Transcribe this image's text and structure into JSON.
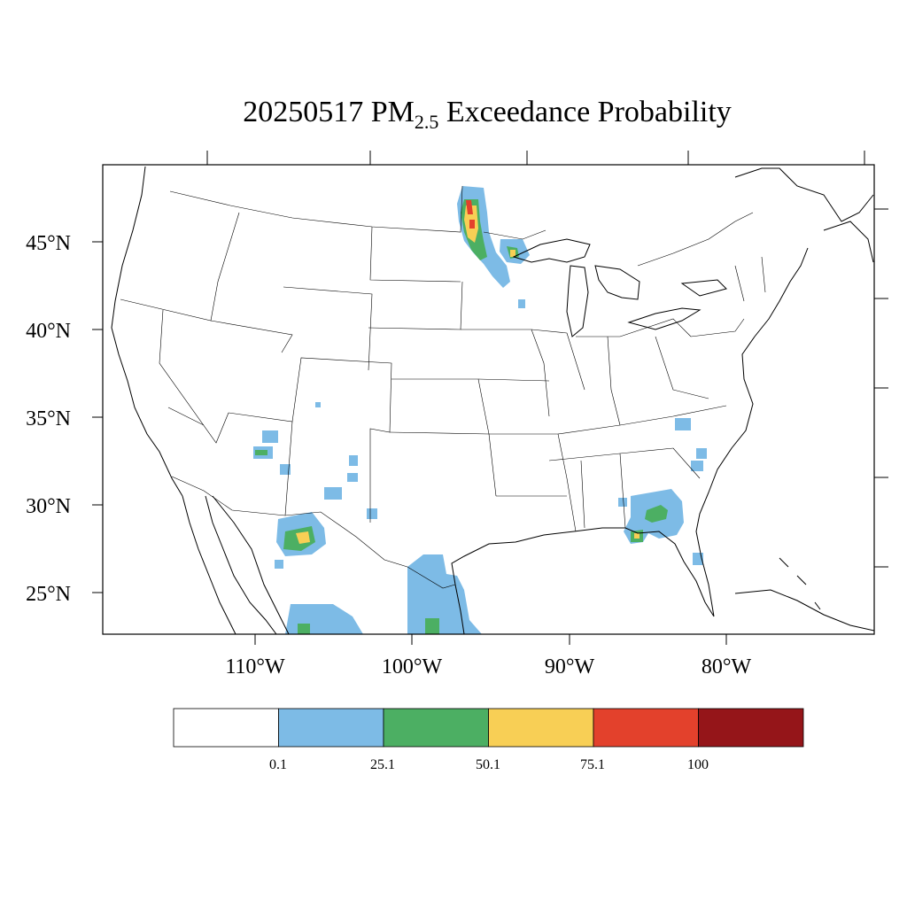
{
  "title": {
    "date": "20250517",
    "species": "PM",
    "subscript": "2.5",
    "suffix": "Exceedance Probability"
  },
  "map": {
    "lat_labels": [
      "45°N",
      "40°N",
      "35°N",
      "30°N",
      "25°N"
    ],
    "lon_labels": [
      "110°W",
      "100°W",
      "90°W",
      "80°W"
    ],
    "lat_values": [
      45,
      40,
      35,
      30,
      25
    ],
    "lon_values": [
      -110,
      -100,
      -90,
      -80
    ]
  },
  "legend": {
    "colors": [
      "#ffffff",
      "#7dbbe6",
      "#4caf63",
      "#f8cf55",
      "#e3412c",
      "#951519"
    ],
    "labels": [
      "0.1",
      "25.1",
      "50.1",
      "75.1",
      "100"
    ]
  },
  "probability_levels": {
    "blue": "#7dbbe6",
    "green": "#4caf63",
    "yellow": "#f8cf55",
    "red": "#e3412c"
  }
}
